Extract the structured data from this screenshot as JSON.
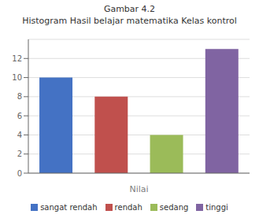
{
  "chart_data": {
    "type": "bar",
    "title": "Gambar 4.2",
    "subtitle": "Histogram Hasil belajar matematika Kelas kontrol",
    "xlabel": "Nilai",
    "categories": [
      "sangat rendah",
      "rendah",
      "sedang",
      "tinggi"
    ],
    "values": [
      10,
      8,
      4,
      13
    ],
    "colors": [
      "#4472C4",
      "#C0504D",
      "#9BBB59",
      "#8064A2"
    ],
    "ylim": [
      0,
      14
    ],
    "yticks": [
      0,
      2,
      4,
      6,
      8,
      10,
      12
    ],
    "grid": true,
    "legend": "bottom",
    "tick_labels": "y"
  }
}
